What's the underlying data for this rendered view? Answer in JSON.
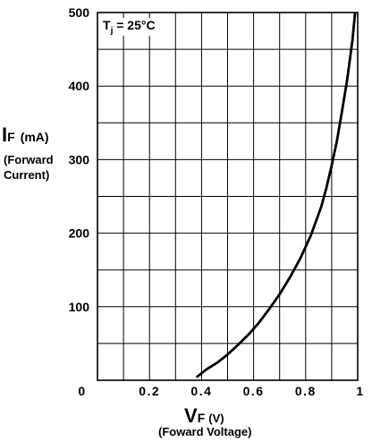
{
  "chart_data": {
    "type": "line",
    "title": "",
    "annotation": {
      "T": "T",
      "sub": "j",
      "rest": " = 25°C"
    },
    "ylabel": {
      "symbol": "I",
      "sub": "F",
      "unit": "(mA)",
      "description_line1": "(Forward",
      "description_line2": "Current)"
    },
    "xlabel": {
      "symbol": "V",
      "sub": "F",
      "unit": "(V)",
      "description": "(Foward Voltage)"
    },
    "xlim": [
      0,
      1.0
    ],
    "ylim": [
      0,
      500
    ],
    "x_tick_labels": [
      "0",
      "0.2",
      "0.4",
      "0.6",
      "0.8",
      "1"
    ],
    "y_tick_labels": [
      "0",
      "100",
      "200",
      "300",
      "400",
      "500"
    ],
    "grid": true,
    "series": [
      {
        "x": [
          0.38,
          0.42,
          0.46,
          0.5,
          0.54,
          0.58,
          0.62,
          0.66,
          0.7,
          0.74,
          0.78,
          0.82,
          0.86,
          0.88,
          0.9,
          0.92,
          0.94,
          0.96,
          0.98,
          0.99
        ],
        "y": [
          4,
          15,
          24,
          35,
          48,
          62,
          78,
          97,
          117,
          140,
          166,
          197,
          236,
          262,
          292,
          325,
          366,
          410,
          463,
          500
        ]
      }
    ]
  }
}
